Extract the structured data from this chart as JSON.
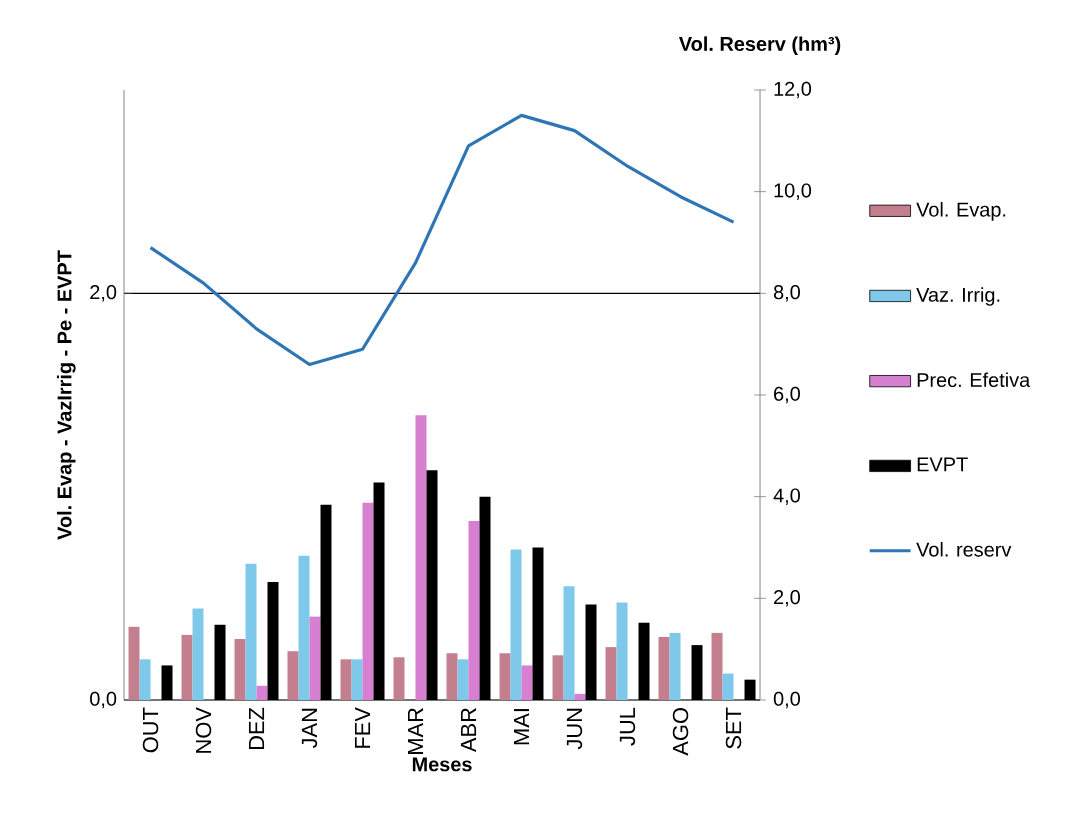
{
  "chart_data": {
    "type": "bar",
    "xlabel": "Meses",
    "ylabel": "Vol. Evap - VazIrrig - Pe - EVPT",
    "y2label": "Vol. Reserv (hm³)",
    "categories": [
      "OUT",
      "NOV",
      "DEZ",
      "JAN",
      "FEV",
      "MAR",
      "ABR",
      "MAI",
      "JUN",
      "JUL",
      "AGO",
      "SET"
    ],
    "series": [
      {
        "name": "Vol. Evap.",
        "color": "#c47f8f",
        "values": [
          0.36,
          0.32,
          0.3,
          0.24,
          0.2,
          0.21,
          0.23,
          0.23,
          0.22,
          0.26,
          0.31,
          0.33
        ]
      },
      {
        "name": "Vaz. Irrig.",
        "color": "#7ec8ea",
        "values": [
          0.2,
          0.45,
          0.67,
          0.71,
          0.2,
          0,
          0.2,
          0.74,
          0.56,
          0.48,
          0.33,
          0.13
        ]
      },
      {
        "name": "Prec. Efetiva",
        "color": "#d77fd0",
        "values": [
          0,
          0,
          0.07,
          0.41,
          0.97,
          1.4,
          0.88,
          0.17,
          0.03,
          0,
          0,
          0
        ]
      },
      {
        "name": "EVPT",
        "color": "#000000",
        "values": [
          0.17,
          0.37,
          0.58,
          0.96,
          1.07,
          1.13,
          1.0,
          0.75,
          0.47,
          0.38,
          0.27,
          0.1
        ]
      },
      {
        "name": "Vol. reserv",
        "color": "#2e75b6",
        "type": "line",
        "axis": "y2",
        "values": [
          8.9,
          8.2,
          7.3,
          6.6,
          6.9,
          8.6,
          10.9,
          11.5,
          11.2,
          10.5,
          9.9,
          9.4
        ]
      }
    ],
    "ylim": [
      0,
      3
    ],
    "yticks": [
      {
        "value": 0,
        "label": "0,0"
      },
      {
        "value": 2,
        "label": "2,0"
      }
    ],
    "y2lim": [
      0,
      12
    ],
    "y2ticks": [
      {
        "value": 0,
        "label": "0,0"
      },
      {
        "value": 2,
        "label": "2,0"
      },
      {
        "value": 4,
        "label": "4,0"
      },
      {
        "value": 6,
        "label": "6,0"
      },
      {
        "value": 8,
        "label": "8,0"
      },
      {
        "value": 10,
        "label": "10,0"
      },
      {
        "value": 12,
        "label": "12,0"
      }
    ],
    "grid": "y",
    "legend": "right"
  }
}
